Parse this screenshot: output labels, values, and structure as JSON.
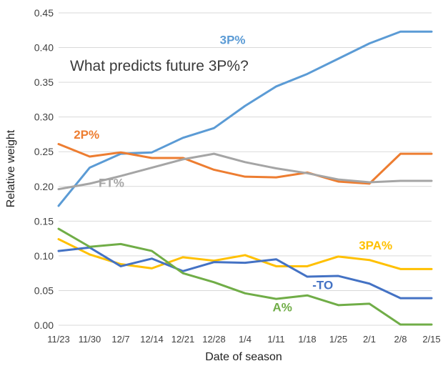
{
  "chart_data": {
    "type": "line",
    "annotation": "What predicts future 3P%?",
    "xlabel": "Date of season",
    "ylabel": "Relative weight",
    "x": [
      "11/23",
      "11/30",
      "12/7",
      "12/14",
      "12/21",
      "12/28",
      "1/4",
      "1/11",
      "1/18",
      "1/25",
      "2/1",
      "2/8",
      "2/15"
    ],
    "ylim": [
      0,
      0.45
    ],
    "yticks": [
      "0.00",
      "0.05",
      "0.10",
      "0.15",
      "0.20",
      "0.25",
      "0.30",
      "0.35",
      "0.40",
      "0.45"
    ],
    "grid": true,
    "legend": "none (series labeled directly)",
    "series": [
      {
        "name": "3P%",
        "color": "#5b9bd5",
        "x": [
          0,
          1,
          2,
          3,
          4,
          5,
          6,
          7,
          8,
          9,
          10,
          11,
          12
        ],
        "values": [
          0.172,
          0.227,
          0.247,
          0.249,
          0.27,
          0.284,
          0.316,
          0.344,
          0.362,
          0.384,
          0.406,
          0.423,
          0.423
        ]
      },
      {
        "name": "2P%",
        "color": "#ed7d31",
        "x": [
          0,
          1,
          2,
          3,
          4,
          5,
          6,
          7,
          8,
          9,
          10,
          11,
          12
        ],
        "values": [
          0.261,
          0.243,
          0.249,
          0.241,
          0.241,
          0.224,
          0.214,
          0.213,
          0.22,
          0.207,
          0.204,
          0.247,
          0.247
        ]
      },
      {
        "name": "FT%",
        "color": "#a5a5a5",
        "x": [
          0,
          1,
          2,
          3,
          4,
          5,
          6,
          7,
          8,
          9,
          10,
          11,
          12
        ],
        "values": [
          0.196,
          0.204,
          0.215,
          0.227,
          0.239,
          0.247,
          0.235,
          0.226,
          0.219,
          0.21,
          0.206,
          0.208,
          0.208
        ]
      },
      {
        "name": "3PA%",
        "color": "#ffc000",
        "x": [
          0,
          1,
          2,
          3,
          4,
          5,
          6,
          7,
          8,
          9,
          10,
          11,
          12
        ],
        "values": [
          0.124,
          0.102,
          0.088,
          0.082,
          0.098,
          0.093,
          0.101,
          0.085,
          0.085,
          0.099,
          0.094,
          0.081,
          0.081
        ]
      },
      {
        "name": "-TO",
        "color": "#4472c4",
        "x": [
          0,
          1,
          2,
          3,
          4,
          5,
          6,
          7,
          8,
          9,
          10,
          11,
          12
        ],
        "values": [
          0.107,
          0.112,
          0.085,
          0.096,
          0.078,
          0.091,
          0.09,
          0.095,
          0.07,
          0.071,
          0.06,
          0.039,
          0.039
        ]
      },
      {
        "name": "A%",
        "color": "#70ad47",
        "x": [
          0,
          1,
          2,
          3,
          4,
          5,
          6,
          7,
          8,
          9,
          10,
          11,
          12
        ],
        "values": [
          0.139,
          0.113,
          0.117,
          0.107,
          0.075,
          0.062,
          0.046,
          0.038,
          0.043,
          0.029,
          0.031,
          0.001,
          0.001
        ]
      }
    ]
  }
}
